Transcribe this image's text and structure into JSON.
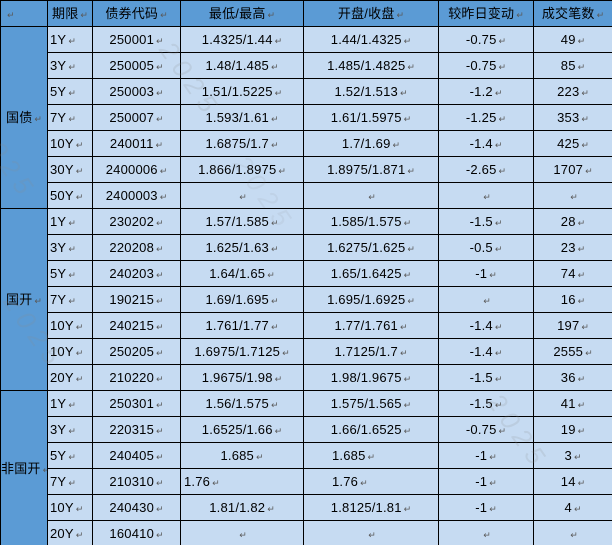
{
  "colors": {
    "header_bg": "#5b9bd5",
    "cell_bg": "#c6dbf2",
    "border": "#000000",
    "text": "#000000",
    "mark": "#5a5a5a",
    "watermark": "#8a8a8a"
  },
  "watermark": {
    "text": "2025"
  },
  "table": {
    "end_mark": "↵",
    "header": [
      "期限",
      "债券代码",
      "最低/最高",
      "开盘/收盘",
      "较昨日变动",
      "成交笔数"
    ],
    "groups": [
      {
        "name": "国债",
        "rows": [
          {
            "term": "1Y",
            "code": "250001",
            "low_high": "1.4325/1.44",
            "open_close": "1.44/1.4325",
            "change": "-0.75",
            "trades": "49"
          },
          {
            "term": "3Y",
            "code": "250005",
            "low_high": "1.48/1.485",
            "open_close": "1.485/1.4825",
            "change": "-0.75",
            "trades": "85"
          },
          {
            "term": "5Y",
            "code": "250003",
            "low_high": "1.51/1.5225",
            "open_close": "1.52/1.513",
            "change": "-1.2",
            "trades": "223"
          },
          {
            "term": "7Y",
            "code": "250007",
            "low_high": "1.593/1.61",
            "open_close": "1.61/1.5975",
            "change": "-1.25",
            "trades": "353"
          },
          {
            "term": "10Y",
            "code": "240011",
            "low_high": "1.6875/1.7",
            "open_close": "1.7/1.69",
            "change": "-1.4",
            "trades": "425"
          },
          {
            "term": "30Y",
            "code": "2400006",
            "low_high": "1.866/1.8975",
            "open_close": "1.8975/1.871",
            "change": "-2.65",
            "trades": "1707"
          },
          {
            "term": "50Y",
            "code": "2400003",
            "low_high": "",
            "open_close": "",
            "change": "",
            "trades": ""
          }
        ]
      },
      {
        "name": "国开",
        "rows": [
          {
            "term": "1Y",
            "code": "230202",
            "low_high": "1.57/1.585",
            "open_close": "1.585/1.575",
            "change": "-1.5",
            "trades": "28"
          },
          {
            "term": "3Y",
            "code": "220208",
            "low_high": "1.625/1.63",
            "open_close": "1.6275/1.625",
            "change": "-0.5",
            "trades": "23"
          },
          {
            "term": "5Y",
            "code": "240203",
            "low_high": "1.64/1.65",
            "open_close": "1.65/1.6425",
            "change": "-1",
            "trades": "74"
          },
          {
            "term": "7Y",
            "code": "190215",
            "low_high": "1.69/1.695",
            "open_close": "1.695/1.6925",
            "change": "",
            "trades": "16"
          },
          {
            "term": "10Y",
            "code": "240215",
            "low_high": "1.761/1.77",
            "open_close": "1.77/1.761",
            "change": "-1.4",
            "trades": "197"
          },
          {
            "term": "10Y",
            "code": "250205",
            "low_high": "1.6975/1.7125",
            "open_close": "1.7125/1.7",
            "change": "-1.4",
            "trades": "2555"
          },
          {
            "term": "20Y",
            "code": "210220",
            "low_high": "1.9675/1.98",
            "open_close": "1.98/1.9675",
            "change": "-1.5",
            "trades": "36"
          }
        ]
      },
      {
        "name": "非国开",
        "rows": [
          {
            "term": "1Y",
            "code": "250301",
            "low_high": "1.56/1.575",
            "open_close": "1.575/1.565",
            "change": "-1.5",
            "trades": "41"
          },
          {
            "term": "3Y",
            "code": "220315",
            "low_high": "1.6525/1.66",
            "open_close": "1.66/1.6525",
            "change": "-0.75",
            "trades": "19"
          },
          {
            "term": "5Y",
            "code": "240405",
            "low_high": "1.685",
            "open_close": "1.685",
            "change": "-1",
            "trades": "3",
            "align": {
              "open_close": "left28"
            }
          },
          {
            "term": "7Y",
            "code": "210310",
            "low_high": "1.76",
            "open_close": "1.76",
            "change": "-1",
            "trades": "14",
            "align": {
              "low_high": "left3",
              "open_close": "left28"
            }
          },
          {
            "term": "10Y",
            "code": "240430",
            "low_high": "1.81/1.82",
            "open_close": "1.8125/1.81",
            "change": "-1",
            "trades": "4"
          },
          {
            "term": "20Y",
            "code": "160410",
            "low_high": "",
            "open_close": "",
            "change": "",
            "trades": ""
          }
        ]
      }
    ]
  }
}
